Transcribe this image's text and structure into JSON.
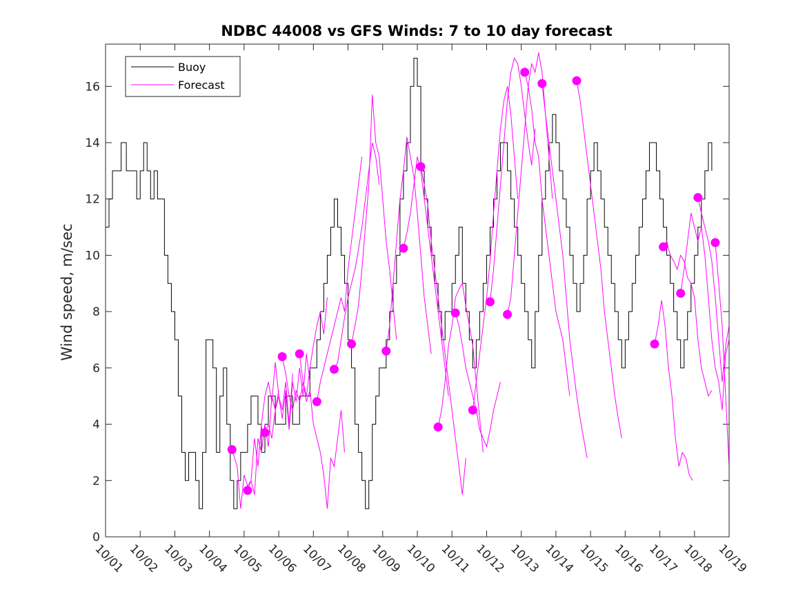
{
  "chart_data": {
    "type": "line",
    "title": "NDBC 44008 vs GFS Winds: 7 to 10 day forecast",
    "xlabel": "",
    "ylabel": "Wind speed, m/sec",
    "xlim": [
      0,
      18
    ],
    "ylim": [
      0,
      17.5
    ],
    "x_tick_labels": [
      "10/01",
      "10/02",
      "10/03",
      "10/04",
      "10/05",
      "10/06",
      "10/07",
      "10/08",
      "10/09",
      "10/10",
      "10/11",
      "10/12",
      "10/13",
      "10/14",
      "10/15",
      "10/16",
      "10/17",
      "10/18",
      "10/19"
    ],
    "y_ticks": [
      0,
      2,
      4,
      6,
      8,
      10,
      12,
      14,
      16
    ],
    "legend": {
      "position": "top-left",
      "entries": [
        "Buoy",
        "Forecast"
      ]
    },
    "colors": {
      "buoy": "#000000",
      "forecast": "#ff00ff"
    },
    "series": [
      {
        "name": "Buoy",
        "x": [
          0.0,
          0.1,
          0.2,
          0.3,
          0.45,
          0.6,
          0.75,
          0.9,
          1.0,
          1.1,
          1.2,
          1.3,
          1.4,
          1.5,
          1.6,
          1.7,
          1.8,
          1.9,
          2.0,
          2.1,
          2.2,
          2.3,
          2.4,
          2.5,
          2.6,
          2.7,
          2.8,
          2.9,
          3.0,
          3.1,
          3.2,
          3.3,
          3.4,
          3.5,
          3.6,
          3.7,
          3.8,
          3.9,
          4.0,
          4.1,
          4.2,
          4.3,
          4.4,
          4.5,
          4.6,
          4.7,
          4.8,
          4.9,
          5.0,
          5.1,
          5.2,
          5.3,
          5.4,
          5.5,
          5.6,
          5.7,
          5.8,
          5.9,
          6.0,
          6.1,
          6.2,
          6.3,
          6.4,
          6.5,
          6.6,
          6.7,
          6.8,
          6.9,
          7.0,
          7.1,
          7.2,
          7.3,
          7.4,
          7.5,
          7.6,
          7.7,
          7.8,
          7.9,
          8.0,
          8.1,
          8.2,
          8.3,
          8.4,
          8.5,
          8.6,
          8.7,
          8.8,
          8.9,
          9.0,
          9.1,
          9.2,
          9.3,
          9.4,
          9.5,
          9.6,
          9.7,
          9.8,
          9.9,
          10.0,
          10.1,
          10.2,
          10.3,
          10.4,
          10.5,
          10.6,
          10.7,
          10.8,
          10.9,
          11.0,
          11.1,
          11.2,
          11.3,
          11.4,
          11.5,
          11.6,
          11.7,
          11.8,
          11.9,
          12.0,
          12.1,
          12.2,
          12.3,
          12.4,
          12.5,
          12.6,
          12.7,
          12.8,
          12.9,
          13.0,
          13.1,
          13.2,
          13.3,
          13.4,
          13.5,
          13.6,
          13.7,
          13.8,
          13.9,
          14.0,
          14.1,
          14.2,
          14.3,
          14.4,
          14.5,
          14.6,
          14.7,
          14.8,
          14.9,
          15.0,
          15.1,
          15.2,
          15.3,
          15.4,
          15.5,
          15.6,
          15.7,
          15.8,
          15.9,
          16.0,
          16.1,
          16.2,
          16.3,
          16.4,
          16.5,
          16.6,
          16.7,
          16.8,
          16.9,
          17.0,
          17.1,
          17.2,
          17.3,
          17.4,
          17.5
        ],
        "values": [
          11,
          12,
          13,
          13,
          14,
          13,
          13,
          12,
          13,
          14,
          13,
          12,
          13,
          12,
          12,
          10,
          9,
          8,
          7,
          5,
          3,
          2,
          3,
          3,
          2,
          1,
          3,
          7,
          7,
          6,
          3,
          5,
          6,
          4,
          2,
          1,
          2,
          3,
          3,
          4,
          5,
          5,
          4,
          3,
          4,
          5,
          5,
          4,
          4,
          4,
          5,
          5,
          4,
          4,
          5,
          5,
          5,
          6,
          6,
          7,
          8,
          9,
          10,
          11,
          12,
          11,
          10,
          9,
          7,
          6,
          4,
          3,
          2,
          1,
          2,
          4,
          5,
          6,
          6,
          7,
          8,
          9,
          10,
          12,
          13,
          14,
          16,
          17,
          16,
          13,
          12,
          11,
          10,
          9,
          8,
          7,
          8,
          8,
          9,
          10,
          11,
          9,
          8,
          7,
          6,
          7,
          8,
          9,
          10,
          11,
          12,
          13,
          14,
          14,
          13,
          12,
          11,
          10,
          9,
          8,
          7,
          6,
          8,
          10,
          12,
          13,
          14,
          15,
          14,
          13,
          12,
          11,
          10,
          9,
          8,
          9,
          10,
          12,
          13,
          14,
          13,
          12,
          11,
          10,
          9,
          8,
          7,
          6,
          7,
          8,
          9,
          10,
          11,
          12,
          13,
          14,
          14,
          13,
          12,
          11,
          10,
          9,
          8,
          7,
          6,
          7,
          8,
          9,
          10,
          11,
          12,
          13,
          14,
          13
        ]
      },
      {
        "name": "Forecast 1",
        "x": [
          3.65,
          3.8,
          3.9,
          4.0,
          4.1,
          4.2,
          4.3,
          4.4,
          4.5,
          4.6,
          4.7,
          4.8,
          4.9,
          5.0
        ],
        "values": [
          3.1,
          2.5,
          1.0,
          2.2,
          1.8,
          2.0,
          1.5,
          3.5,
          3.0,
          4.0,
          3.2,
          5.0,
          4.5,
          5.2
        ]
      },
      {
        "name": "Forecast 2",
        "x": [
          4.1,
          4.2,
          4.3,
          4.4,
          4.5,
          4.6,
          4.7,
          4.8,
          4.9,
          5.0,
          5.1,
          5.2,
          5.3,
          5.4
        ],
        "values": [
          1.65,
          2.0,
          3.5,
          2.5,
          4.0,
          5.0,
          5.5,
          4.8,
          6.2,
          5.0,
          4.5,
          5.5,
          4.0,
          5.8
        ]
      },
      {
        "name": "Forecast 3",
        "x": [
          4.6,
          4.7,
          4.8,
          4.9,
          5.0,
          5.1,
          5.2,
          5.3,
          5.4,
          5.5,
          5.6,
          5.7,
          5.8,
          5.9
        ],
        "values": [
          3.7,
          4.0,
          3.5,
          4.5,
          5.0,
          4.2,
          5.2,
          3.8,
          5.5,
          4.8,
          6.0,
          5.0,
          6.5,
          5.5
        ]
      },
      {
        "name": "Forecast 4",
        "x": [
          5.1,
          5.2,
          5.3,
          5.4,
          5.5,
          5.6,
          5.7,
          5.8,
          5.9,
          6.0,
          6.1,
          6.2,
          6.3,
          6.4
        ],
        "values": [
          6.4,
          5.8,
          5.0,
          4.5,
          5.2,
          4.8,
          5.5,
          5.0,
          6.0,
          6.8,
          7.5,
          8.0,
          7.2,
          8.5
        ]
      },
      {
        "name": "Forecast 5",
        "x": [
          5.6,
          5.7,
          5.8,
          5.9,
          6.0,
          6.1,
          6.2,
          6.3,
          6.4,
          6.5,
          6.6,
          6.7,
          6.8,
          6.9
        ],
        "values": [
          6.5,
          5.5,
          4.8,
          5.2,
          4.0,
          3.5,
          3.0,
          2.2,
          1.0,
          2.8,
          2.5,
          3.5,
          4.5,
          3.0
        ]
      },
      {
        "name": "Forecast 6",
        "x": [
          6.1,
          6.2,
          6.3,
          6.4,
          6.5,
          6.6,
          6.7,
          6.8,
          6.9,
          7.0,
          7.1,
          7.2,
          7.3,
          7.4
        ],
        "values": [
          4.8,
          5.5,
          6.0,
          6.5,
          7.0,
          7.5,
          8.0,
          8.5,
          8.0,
          9.5,
          10.5,
          11.5,
          12.5,
          13.5
        ]
      },
      {
        "name": "Forecast 7",
        "x": [
          6.6,
          6.7,
          6.8,
          6.9,
          7.0,
          7.1,
          7.2,
          7.3,
          7.4,
          7.5,
          7.6,
          7.7,
          7.8,
          7.9
        ],
        "values": [
          5.95,
          6.2,
          7.0,
          7.8,
          8.5,
          9.0,
          9.5,
          10.2,
          11.0,
          12.0,
          13.0,
          14.0,
          13.5,
          12.5
        ]
      },
      {
        "name": "Forecast 8",
        "x": [
          7.1,
          7.2,
          7.3,
          7.4,
          7.5,
          7.6,
          7.7,
          7.8,
          7.9,
          8.0,
          8.1,
          8.2,
          8.3,
          8.4
        ],
        "values": [
          6.85,
          7.5,
          8.2,
          9.5,
          11.0,
          12.5,
          15.7,
          14.0,
          13.5,
          12.0,
          10.5,
          9.5,
          8.2,
          7.0
        ]
      },
      {
        "name": "Forecast 9",
        "x": [
          8.1,
          8.2,
          8.3,
          8.4,
          8.5,
          8.6,
          8.7,
          8.8,
          8.9,
          9.0,
          9.1,
          9.2,
          9.3,
          9.4
        ],
        "values": [
          6.6,
          7.5,
          9.0,
          10.5,
          12.0,
          13.0,
          14.2,
          13.5,
          12.8,
          11.5,
          10.0,
          8.5,
          7.5,
          6.5
        ]
      },
      {
        "name": "Forecast 10",
        "x": [
          8.6,
          8.7,
          8.8,
          8.9,
          9.0,
          9.1,
          9.2,
          9.3,
          9.4,
          9.5,
          9.6,
          9.7,
          9.8,
          9.9
        ],
        "values": [
          10.25,
          10.8,
          11.5,
          12.5,
          13.5,
          13.0,
          12.0,
          11.0,
          10.0,
          9.0,
          8.0,
          7.0,
          6.0,
          5.0
        ]
      },
      {
        "name": "Forecast 11",
        "x": [
          9.1,
          9.2,
          9.3,
          9.4,
          9.5,
          9.6,
          9.7,
          9.8,
          9.9,
          10.0,
          10.1,
          10.2,
          10.3,
          10.4
        ],
        "values": [
          13.15,
          12.5,
          11.8,
          10.5,
          9.5,
          8.5,
          7.5,
          6.5,
          5.5,
          4.5,
          3.5,
          2.5,
          1.5,
          2.8
        ]
      },
      {
        "name": "Forecast 12",
        "x": [
          9.6,
          9.7,
          9.8,
          9.9,
          10.0,
          10.1,
          10.2,
          10.3,
          10.4,
          10.5,
          10.6,
          10.7,
          10.8,
          10.9
        ],
        "values": [
          3.9,
          4.5,
          5.5,
          6.8,
          7.5,
          8.5,
          8.8,
          9.0,
          8.2,
          7.5,
          6.8,
          5.5,
          4.2,
          3.0
        ]
      },
      {
        "name": "Forecast 13",
        "x": [
          10.1,
          10.2,
          10.3,
          10.4,
          10.5,
          10.6,
          10.7,
          10.8,
          10.9,
          11.0,
          11.1,
          11.2,
          11.3,
          11.4
        ],
        "values": [
          7.95,
          7.5,
          6.8,
          6.0,
          5.5,
          5.0,
          4.5,
          3.8,
          3.5,
          3.2,
          3.8,
          4.5,
          5.0,
          5.5
        ]
      },
      {
        "name": "Forecast 14",
        "x": [
          10.6,
          10.7,
          10.8,
          10.9,
          11.0,
          11.1,
          11.2,
          11.3,
          11.4,
          11.5,
          11.6,
          11.7,
          11.8,
          11.9
        ],
        "values": [
          4.5,
          5.5,
          6.5,
          7.5,
          8.5,
          9.8,
          11.5,
          13.0,
          14.5,
          15.5,
          16.0,
          15.0,
          13.5,
          12.0
        ]
      },
      {
        "name": "Forecast 15",
        "x": [
          11.1,
          11.2,
          11.3,
          11.4,
          11.5,
          11.6,
          11.7,
          11.8,
          11.9,
          12.0,
          12.1,
          12.2,
          12.3,
          12.4
        ],
        "values": [
          8.35,
          9.5,
          11.0,
          12.5,
          14.0,
          15.5,
          16.5,
          17.0,
          16.8,
          16.0,
          15.0,
          14.0,
          13.2,
          14.5
        ]
      },
      {
        "name": "Forecast 16",
        "x": [
          11.6,
          11.7,
          11.8,
          11.9,
          12.0,
          12.1,
          12.2,
          12.3,
          12.4,
          12.5,
          12.6,
          12.7,
          12.8,
          12.9
        ],
        "values": [
          7.9,
          8.5,
          10.0,
          11.5,
          13.0,
          14.5,
          16.0,
          16.8,
          16.5,
          17.2,
          16.5,
          15.0,
          13.5,
          12.0
        ]
      },
      {
        "name": "Forecast 17",
        "x": [
          12.1,
          12.2,
          12.3,
          12.4,
          12.5,
          12.6,
          12.7,
          12.8,
          12.9,
          13.0,
          13.1,
          13.2,
          13.3,
          13.4
        ],
        "values": [
          16.5,
          16.0,
          15.2,
          14.0,
          13.5,
          12.0,
          11.0,
          10.0,
          9.0,
          8.0,
          7.5,
          7.0,
          6.0,
          5.0
        ]
      },
      {
        "name": "Forecast 18",
        "x": [
          12.6,
          12.7,
          12.8,
          12.9,
          13.0,
          13.1,
          13.2,
          13.3,
          13.4,
          13.5,
          13.6,
          13.7,
          13.8,
          13.9
        ],
        "values": [
          16.1,
          15.0,
          14.0,
          13.0,
          12.0,
          11.0,
          10.0,
          8.5,
          7.0,
          6.0,
          5.0,
          4.2,
          3.5,
          2.8
        ]
      },
      {
        "name": "Forecast 19",
        "x": [
          13.6,
          13.7,
          13.8,
          13.9,
          14.0,
          14.1,
          14.2,
          14.3,
          14.4,
          14.5,
          14.6,
          14.7,
          14.8,
          14.9
        ],
        "values": [
          16.2,
          15.5,
          14.5,
          13.5,
          12.5,
          11.5,
          10.5,
          9.5,
          8.0,
          7.0,
          6.0,
          5.0,
          4.2,
          3.5
        ]
      },
      {
        "name": "Forecast 20",
        "x": [
          15.85,
          15.95,
          16.05,
          16.15,
          16.25,
          16.35,
          16.45,
          16.55,
          16.65,
          16.75,
          16.85,
          16.95
        ],
        "values": [
          6.85,
          7.5,
          8.4,
          7.5,
          6.0,
          5.0,
          3.5,
          2.5,
          3.0,
          2.8,
          2.2,
          2.0
        ]
      },
      {
        "name": "Forecast 21",
        "x": [
          16.1,
          16.2,
          16.3,
          16.4,
          16.5,
          16.6,
          16.7,
          16.8,
          16.9,
          17.0,
          17.1,
          17.2,
          17.3,
          17.4,
          17.5
        ],
        "values": [
          10.3,
          10.5,
          10.0,
          9.8,
          9.5,
          10.0,
          9.8,
          9.2,
          9.0,
          8.5,
          7.0,
          6.0,
          5.5,
          5.0,
          5.2
        ]
      },
      {
        "name": "Forecast 22",
        "x": [
          16.6,
          16.7,
          16.8,
          16.9,
          17.0,
          17.1,
          17.2,
          17.3,
          17.4,
          17.5,
          17.6,
          17.7,
          17.8,
          17.9,
          18.0
        ],
        "values": [
          8.65,
          9.5,
          10.5,
          11.5,
          11.0,
          10.5,
          11.0,
          10.0,
          8.5,
          7.0,
          6.0,
          5.5,
          4.5,
          6.5,
          7.0
        ]
      },
      {
        "name": "Forecast 23",
        "x": [
          17.1,
          17.2,
          17.3,
          17.4,
          17.5,
          17.6,
          17.7,
          17.8,
          17.9,
          18.0
        ],
        "values": [
          12.05,
          11.5,
          11.0,
          10.5,
          9.8,
          8.5,
          7.0,
          5.5,
          6.8,
          7.5
        ]
      },
      {
        "name": "Forecast 24",
        "x": [
          17.6,
          17.7,
          17.8,
          17.9,
          18.0
        ],
        "values": [
          10.45,
          9.0,
          7.5,
          5.0,
          2.5
        ]
      }
    ],
    "forecast_markers": {
      "x": [
        3.65,
        4.1,
        4.6,
        5.1,
        5.6,
        6.1,
        6.6,
        7.1,
        8.1,
        8.6,
        9.1,
        9.6,
        10.1,
        10.6,
        11.1,
        11.6,
        12.1,
        12.6,
        13.6,
        15.85,
        16.1,
        16.6,
        17.1,
        17.6
      ],
      "values": [
        3.1,
        1.65,
        3.7,
        6.4,
        6.5,
        4.8,
        5.95,
        6.85,
        6.6,
        10.25,
        13.15,
        3.9,
        7.95,
        4.5,
        8.35,
        7.9,
        16.5,
        16.1,
        16.2,
        6.85,
        10.3,
        8.65,
        12.05,
        10.45
      ]
    }
  }
}
